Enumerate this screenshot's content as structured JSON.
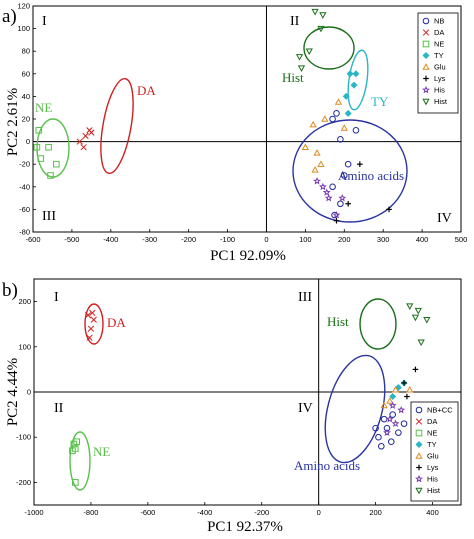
{
  "colors": {
    "NB": "#1f2a9c",
    "DA": "#d11f1f",
    "NE": "#58c14a",
    "TY": "#29b5c5",
    "Glu": "#e08a1f",
    "Lys": "#000000",
    "His": "#7a3ab0",
    "Hist": "#1a6e18",
    "AminoAcids": "#2a35a0"
  },
  "chart_data": [
    {
      "panel_label": "a)",
      "type": "scatter",
      "xlabel": "PC1 92.09%",
      "ylabel": "PC2  2.61%",
      "xlim": [
        -600,
        500
      ],
      "ylim": [
        -80,
        120
      ],
      "xticks": [
        -600,
        -500,
        -400,
        -300,
        -200,
        -100,
        0,
        100,
        200,
        300,
        400,
        500
      ],
      "yticks": [
        -80,
        -60,
        -40,
        -20,
        0,
        20,
        40,
        60,
        80,
        100,
        120
      ],
      "grid": false,
      "legend_position": "top-right",
      "quadrants": [
        "I",
        "II",
        "III",
        "IV"
      ],
      "series": [
        {
          "name": "NB",
          "marker": "circle",
          "color": "NB",
          "points": [
            [
              180,
              25
            ],
            [
              190,
              2
            ],
            [
              210,
              -20
            ],
            [
              170,
              -40
            ],
            [
              190,
              -55
            ],
            [
              175,
              -65
            ],
            [
              230,
              10
            ],
            [
              170,
              20
            ],
            [
              200,
              -30
            ]
          ]
        },
        {
          "name": "DA",
          "marker": "x",
          "color": "DA",
          "points": [
            [
              -465,
              5
            ],
            [
              -455,
              10
            ],
            [
              -450,
              8
            ],
            [
              -470,
              -5
            ],
            [
              -480,
              0
            ]
          ]
        },
        {
          "name": "NE",
          "marker": "square",
          "color": "NE",
          "points": [
            [
              -585,
              10
            ],
            [
              -590,
              -5
            ],
            [
              -560,
              -5
            ],
            [
              -540,
              -20
            ],
            [
              -555,
              -30
            ],
            [
              -580,
              -15
            ]
          ]
        },
        {
          "name": "TY",
          "marker": "diamond",
          "color": "TY",
          "points": [
            [
              215,
              60
            ],
            [
              225,
              50
            ],
            [
              205,
              40
            ],
            [
              210,
              25
            ],
            [
              230,
              60
            ]
          ]
        },
        {
          "name": "Glu",
          "marker": "triangle-up",
          "color": "Glu",
          "points": [
            [
              120,
              15
            ],
            [
              130,
              -10
            ],
            [
              140,
              -20
            ],
            [
              150,
              20
            ],
            [
              200,
              12
            ],
            [
              185,
              35
            ],
            [
              100,
              -5
            ],
            [
              125,
              -25
            ]
          ]
        },
        {
          "name": "Lys",
          "marker": "plus",
          "color": "Lys",
          "points": [
            [
              240,
              -20
            ],
            [
              180,
              -70
            ],
            [
              210,
              -55
            ],
            [
              315,
              -60
            ]
          ]
        },
        {
          "name": "His",
          "marker": "star",
          "color": "His",
          "points": [
            [
              130,
              -35
            ],
            [
              145,
              -40
            ],
            [
              160,
              -50
            ],
            [
              180,
              -65
            ],
            [
              155,
              -45
            ],
            [
              195,
              -50
            ]
          ]
        },
        {
          "name": "Hist",
          "marker": "triangle-down",
          "color": "Hist",
          "points": [
            [
              125,
              115
            ],
            [
              140,
              100
            ],
            [
              145,
              112
            ],
            [
              90,
              65
            ],
            [
              85,
              75
            ],
            [
              110,
              80
            ]
          ]
        }
      ],
      "groups": [
        {
          "label": "DA",
          "color": "DA"
        },
        {
          "label": "NE",
          "color": "NE"
        },
        {
          "label": "TY",
          "color": "TY"
        },
        {
          "label": "Hist",
          "color": "Hist"
        },
        {
          "label": "Amino acids",
          "color": "AminoAcids"
        }
      ]
    },
    {
      "panel_label": "b)",
      "type": "scatter",
      "xlabel": "PC1  92.37%",
      "ylabel": "PC2  4.44%",
      "xlim": [
        -1000,
        500
      ],
      "ylim": [
        -250,
        250
      ],
      "xticks": [
        -1000,
        -800,
        -600,
        -400,
        -200,
        0,
        200,
        400
      ],
      "yticks": [
        -200,
        -100,
        0,
        100,
        200
      ],
      "grid": false,
      "legend_position": "bottom-right",
      "quadrants": [
        "I",
        "II",
        "III",
        "IV"
      ],
      "series": [
        {
          "name": "NB+CC",
          "marker": "circle",
          "color": "NB",
          "points": [
            [
              200,
              -80
            ],
            [
              210,
              -100
            ],
            [
              220,
              -120
            ],
            [
              240,
              -80
            ],
            [
              255,
              -110
            ],
            [
              280,
              -90
            ],
            [
              300,
              -70
            ],
            [
              260,
              -50
            ],
            [
              230,
              -60
            ]
          ]
        },
        {
          "name": "DA",
          "marker": "x",
          "color": "DA",
          "points": [
            [
              -810,
              170
            ],
            [
              -800,
              140
            ],
            [
              -790,
              160
            ],
            [
              -805,
              120
            ],
            [
              -795,
              175
            ]
          ]
        },
        {
          "name": "NE",
          "marker": "square",
          "color": "NE",
          "points": [
            [
              -860,
              -115
            ],
            [
              -855,
              -125
            ],
            [
              -865,
              -130
            ],
            [
              -850,
              -110
            ],
            [
              -855,
              -200
            ]
          ]
        },
        {
          "name": "TY",
          "marker": "diamond",
          "color": "TY",
          "points": [
            [
              280,
              10
            ],
            [
              300,
              20
            ],
            [
              260,
              -10
            ]
          ]
        },
        {
          "name": "Glu",
          "marker": "triangle-up",
          "color": "Glu",
          "points": [
            [
              230,
              -30
            ],
            [
              250,
              -20
            ],
            [
              320,
              5
            ],
            [
              270,
              5
            ]
          ]
        },
        {
          "name": "Lys",
          "marker": "plus",
          "color": "Lys",
          "points": [
            [
              300,
              20
            ],
            [
              340,
              50
            ],
            [
              310,
              -10
            ]
          ]
        },
        {
          "name": "His",
          "marker": "star",
          "color": "His",
          "points": [
            [
              250,
              -60
            ],
            [
              270,
              -70
            ],
            [
              240,
              -90
            ],
            [
              290,
              -40
            ],
            [
              260,
              -30
            ]
          ]
        },
        {
          "name": "Hist",
          "marker": "triangle-down",
          "color": "Hist",
          "points": [
            [
              320,
              190
            ],
            [
              350,
              180
            ],
            [
              380,
              160
            ],
            [
              360,
              110
            ],
            [
              340,
              165
            ]
          ]
        }
      ],
      "groups": [
        {
          "label": "DA",
          "color": "DA"
        },
        {
          "label": "NE",
          "color": "NE"
        },
        {
          "label": "Hist",
          "color": "Hist"
        },
        {
          "label": "Amino acids",
          "color": "AminoAcids"
        }
      ]
    }
  ]
}
